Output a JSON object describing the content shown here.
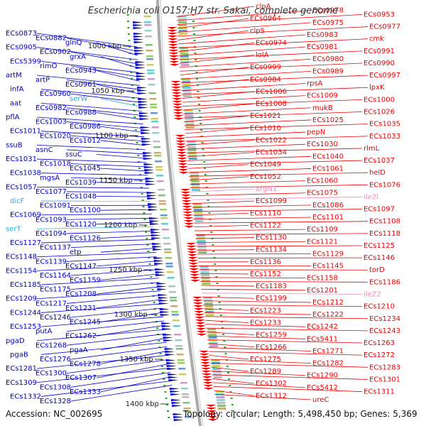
{
  "title": "Escherichia coli O157:H7 str. Sakai, complete genome",
  "footer": {
    "accession": "Accession: NC_002695",
    "summary": "Topology: circular; Length: 5,498,450 bp; Genes: 5,369"
  },
  "colors": {
    "left": "#0000cc",
    "right": "#ee0000",
    "cyan": "#33aadd",
    "pink": "#ee88bb",
    "tick": "#333333",
    "grey": "#999999"
  },
  "ticks": [
    {
      "label": "1000 kbp"
    },
    {
      "label": "1050 kbp"
    },
    {
      "label": "1100 kbp"
    },
    {
      "label": "1150 kbp"
    },
    {
      "label": "1200 kbp"
    },
    {
      "label": "1250 kbp"
    },
    {
      "label": "1300 kbp"
    },
    {
      "label": "1350 kbp"
    },
    {
      "label": "1400 kbp"
    }
  ],
  "left_labels": [
    "ECs0873",
    "ECs0882",
    "glnQ",
    "ECs0905",
    "ECs0902",
    "grxA",
    "ECs5399",
    "rimO",
    "ECs0943",
    "artM",
    "artP",
    "ECs0961",
    "infA",
    "ECs0960",
    "serW",
    "aat",
    "ECs0982",
    "ECs0988",
    "pflA",
    "ECs1003",
    "ECs0986",
    "ECs1011",
    "ECs1020",
    "ECs1012",
    "ssuB",
    "asnC",
    "ssuC",
    "ECs1031",
    "ECs1018",
    "ECs1045",
    "ECs1038",
    "mgsA",
    "ECs1039",
    "ECs1057",
    "ECs1077",
    "ECs1048",
    "dicF",
    "ECs1091",
    "ECs1100",
    "ECs1069",
    "ECs1093",
    "ECs1120",
    "serT",
    "ECs1094",
    "ECs1126",
    "ECs1127",
    "ECs1137",
    "etp",
    "ECs1148",
    "ECs1139",
    "ECs1147",
    "ECs1154",
    "ECs1164",
    "ECs1159",
    "ECs1185",
    "ECs1175",
    "ECs1208",
    "ECs1209",
    "ECs1217",
    "ECs1231",
    "ECs1244",
    "ECs1246",
    "ECs1245",
    "ECs1253",
    "putA",
    "ECs1262",
    "pgaD",
    "ECs1268",
    "pgaA",
    "pgaB",
    "ECs1276",
    "ECs1278",
    "ECs1281",
    "ECs1300",
    "ECs1307",
    "ECs1309",
    "ECs1308",
    "ECs1333",
    "ECs1332",
    "ECs1328"
  ],
  "right_labels": [
    "clpA",
    "ECs0978",
    "ECs0953",
    "ECs0964",
    "ECs0975",
    "ECs0977",
    "clpS",
    "ECs0983",
    "cmk",
    "ECs0974",
    "ECs0981",
    "ECs0991",
    "lolA",
    "ECs0980",
    "ECs0990",
    "ECs0999",
    "ECs0989",
    "ECs0997",
    "ECs0984",
    "rpsA",
    "lpxK",
    "ECs1006",
    "ECs1009",
    "ECs1000",
    "ECs1008",
    "mukB",
    "ECs1026",
    "ECs1021",
    "ECs1025",
    "ECs1035",
    "ECs1010",
    "pepN",
    "ECs1033",
    "ECs1022",
    "ECs1030",
    "rlmL",
    "ECs1034",
    "ECs1040",
    "ECs1037",
    "ECs1049",
    "ECs1061",
    "helD",
    "ECs1052",
    "ECs1060",
    "ECs1076",
    "argN1",
    "ECs1075",
    "ile2I",
    "ECs1099",
    "ECs1086",
    "ECs1097",
    "ECs1110",
    "ECs1101",
    "ECs1108",
    "ECs1122",
    "ECs1109",
    "ECs1118",
    "ECs1130",
    "ECs1121",
    "ECs1125",
    "ECs1134",
    "ECs1129",
    "ECs1146",
    "ECs1136",
    "ECs1145",
    "torD",
    "ECs1152",
    "ECs1158",
    "ECs1186",
    "ECs1183",
    "ECs1201",
    "ileZ2",
    "ECs1199",
    "ECs1212",
    "ECs1210",
    "ECs1223",
    "ECs1222",
    "ECs1234",
    "ECs1233",
    "ECs1242",
    "ECs1243",
    "ECs1259",
    "ECs5411",
    "ECs1263",
    "ECs1266",
    "ECs1271",
    "ECs1272",
    "ECs1275",
    "ECs1282",
    "ECs1283",
    "ECs1289",
    "ECs1290",
    "ECs1301",
    "ECs1302",
    "ECs5412",
    "ECs1311",
    "ECs1312",
    "ureC"
  ]
}
